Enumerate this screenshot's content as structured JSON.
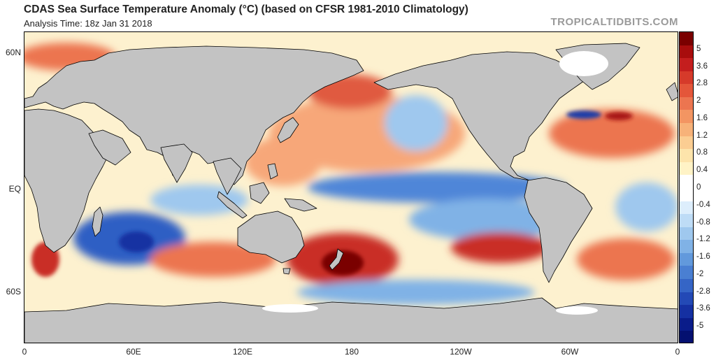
{
  "header": {
    "title": "CDAS Sea Surface Temperature Anomaly (°C) (based on CFSR 1981-2010 Climatology)",
    "analysis_time": "Analysis Time: 18z Jan 31 2018",
    "brand": "TROPICALTIDBITS.COM"
  },
  "axes": {
    "lat_labels": [
      "60N",
      "EQ",
      "60S"
    ],
    "lon_labels": [
      "0",
      "60E",
      "120E",
      "180",
      "120W",
      "60W",
      "0"
    ]
  },
  "colorbar": {
    "labels": [
      "5",
      "3.6",
      "2.8",
      "2",
      "1.6",
      "1.2",
      "0.8",
      "0.4",
      "0",
      "-0.4",
      "-0.8",
      "-1.2",
      "-1.6",
      "-2",
      "-2.8",
      "-3.6",
      "-5"
    ],
    "colors": [
      "#7a0000",
      "#a80d0d",
      "#c41e1e",
      "#d63a2a",
      "#e4563a",
      "#ec7550",
      "#f39562",
      "#f7b279",
      "#fbcd92",
      "#fde4ab",
      "#fff3c6",
      "#ffffff",
      "#ffffff",
      "#ddeefc",
      "#bedcf6",
      "#9fc8ee",
      "#80b2e6",
      "#6299dc",
      "#4a7fd2",
      "#3565c6",
      "#2349b6",
      "#1530a2",
      "#0a1c8a",
      "#041070"
    ]
  },
  "map": {
    "ocean_color": "#ffffff",
    "land_color": "#c3c3c3",
    "ice_color": "#ffffff",
    "border_color": "#000000"
  }
}
